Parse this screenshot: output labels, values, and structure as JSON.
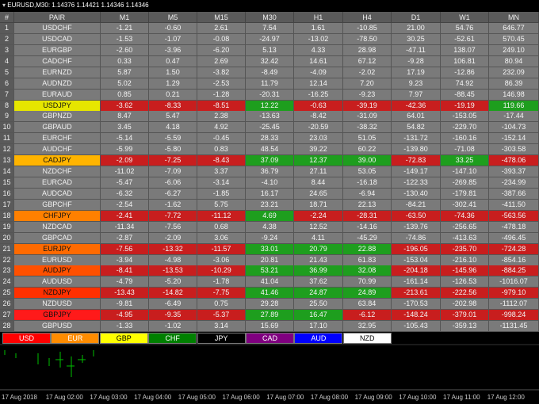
{
  "title": "EURUSD,M30: 1.14376 1.14421 1.14346 1.14346",
  "table": {
    "columns": [
      "#",
      "PAIR",
      "M1",
      "M5",
      "M15",
      "M30",
      "H1",
      "H4",
      "D1",
      "W1",
      "MN"
    ],
    "rows": [
      {
        "num": "1",
        "pair": "USDCHF",
        "values": [
          "-1.21",
          "-0.60",
          "2.61",
          "7.54",
          "1.61",
          "-10.85",
          "21.00",
          "54.76",
          "646.77"
        ]
      },
      {
        "num": "2",
        "pair": "USDCAD",
        "values": [
          "-1.53",
          "-1.07",
          "-0.08",
          "-24.97",
          "-13.02",
          "-78.50",
          "30.25",
          "-52.61",
          "570.45"
        ]
      },
      {
        "num": "3",
        "pair": "EURGBP",
        "values": [
          "-2.60",
          "-3.96",
          "-6.20",
          "5.13",
          "4.33",
          "28.98",
          "-47.11",
          "138.07",
          "249.10"
        ]
      },
      {
        "num": "4",
        "pair": "CADCHF",
        "values": [
          "0.33",
          "0.47",
          "2.69",
          "32.42",
          "14.61",
          "67.12",
          "-9.28",
          "106.81",
          "80.94"
        ]
      },
      {
        "num": "5",
        "pair": "EURNZD",
        "values": [
          "5.87",
          "1.50",
          "-3.82",
          "-8.49",
          "-4.09",
          "-2.02",
          "17.19",
          "-12.86",
          "232.09"
        ]
      },
      {
        "num": "6",
        "pair": "AUDNZD",
        "values": [
          "5.02",
          "1.29",
          "-2.53",
          "11.79",
          "12.14",
          "7.20",
          "9.23",
          "74.92",
          "86.39"
        ]
      },
      {
        "num": "7",
        "pair": "EURAUD",
        "values": [
          "0.85",
          "0.21",
          "-1.28",
          "-20.31",
          "-16.25",
          "-9.23",
          "7.97",
          "-88.45",
          "146.98"
        ]
      },
      {
        "num": "8",
        "pair": "USDJPY",
        "pair_color": "#e6e600",
        "values": [
          "-3.62",
          "-8.33",
          "-8.51",
          "12.22",
          "-0.63",
          "-39.19",
          "-42.36",
          "-19.19",
          "119.66"
        ],
        "cell_colors": [
          "#c81e1e",
          "#c81e1e",
          "#c81e1e",
          "#1e9e1e",
          "#c81e1e",
          "#c81e1e",
          "#c81e1e",
          "#c81e1e",
          "#1e9e1e"
        ]
      },
      {
        "num": "9",
        "pair": "GBPNZD",
        "values": [
          "8.47",
          "5.47",
          "2.38",
          "-13.63",
          "-8.42",
          "-31.09",
          "64.01",
          "-153.05",
          "-17.44"
        ]
      },
      {
        "num": "10",
        "pair": "GBPAUD",
        "values": [
          "3.45",
          "4.18",
          "4.92",
          "-25.45",
          "-20.59",
          "-38.32",
          "54.82",
          "-229.70",
          "-104.73"
        ]
      },
      {
        "num": "11",
        "pair": "EURCHF",
        "values": [
          "-5.14",
          "-5.59",
          "-0.45",
          "28.33",
          "23.03",
          "51.05",
          "-131.72",
          "-160.16",
          "-152.14"
        ]
      },
      {
        "num": "12",
        "pair": "AUDCHF",
        "values": [
          "-5.99",
          "-5.80",
          "0.83",
          "48.54",
          "39.22",
          "60.22",
          "-139.80",
          "-71.08",
          "-303.58"
        ]
      },
      {
        "num": "13",
        "pair": "CADJPY",
        "pair_color": "#ffb400",
        "values": [
          "-2.09",
          "-7.25",
          "-8.43",
          "37.09",
          "12.37",
          "39.00",
          "-72.83",
          "33.25",
          "-478.06"
        ],
        "cell_colors": [
          "#c81e1e",
          "#c81e1e",
          "#c81e1e",
          "#1e9e1e",
          "#1e9e1e",
          "#1e9e1e",
          "#c81e1e",
          "#1e9e1e",
          "#c81e1e"
        ]
      },
      {
        "num": "14",
        "pair": "NZDCHF",
        "values": [
          "-11.02",
          "-7.09",
          "3.37",
          "36.79",
          "27.11",
          "53.05",
          "-149.17",
          "-147.10",
          "-393.37"
        ]
      },
      {
        "num": "15",
        "pair": "EURCAD",
        "values": [
          "-5.47",
          "-6.06",
          "-3.14",
          "-4.10",
          "8.44",
          "-16.18",
          "-122.33",
          "-269.85",
          "-234.99"
        ]
      },
      {
        "num": "16",
        "pair": "AUDCAD",
        "values": [
          "-6.32",
          "-6.27",
          "-1.85",
          "16.17",
          "24.65",
          "-6.94",
          "-130.40",
          "-179.81",
          "-387.66"
        ]
      },
      {
        "num": "17",
        "pair": "GBPCHF",
        "values": [
          "-2.54",
          "-1.62",
          "5.75",
          "23.21",
          "18.71",
          "22.13",
          "-84.21",
          "-302.41",
          "-411.50"
        ]
      },
      {
        "num": "18",
        "pair": "CHFJPY",
        "pair_color": "#ff8000",
        "values": [
          "-2.41",
          "-7.72",
          "-11.12",
          "4.69",
          "-2.24",
          "-28.31",
          "-63.50",
          "-74.36",
          "-563.56"
        ],
        "cell_colors": [
          "#c81e1e",
          "#c81e1e",
          "#c81e1e",
          "#1e9e1e",
          "#c81e1e",
          "#c81e1e",
          "#c81e1e",
          "#c81e1e",
          "#c81e1e"
        ]
      },
      {
        "num": "19",
        "pair": "NZDCAD",
        "values": [
          "-11.34",
          "-7.56",
          "0.68",
          "4.38",
          "12.52",
          "-14.16",
          "-139.76",
          "-256.65",
          "-478.18"
        ]
      },
      {
        "num": "20",
        "pair": "GBPCAD",
        "values": [
          "-2.87",
          "-2.09",
          "3.06",
          "-9.24",
          "4.11",
          "-45.29",
          "-74.86",
          "-413.63",
          "-496.45"
        ]
      },
      {
        "num": "21",
        "pair": "EURJPY",
        "pair_color": "#ff6a00",
        "values": [
          "-7.56",
          "-13.32",
          "-11.57",
          "33.01",
          "20.79",
          "22.88",
          "-196.05",
          "-235.70",
          "-724.28"
        ],
        "cell_colors": [
          "#c81e1e",
          "#c81e1e",
          "#c81e1e",
          "#1e9e1e",
          "#1e9e1e",
          "#1e9e1e",
          "#c81e1e",
          "#c81e1e",
          "#c81e1e"
        ]
      },
      {
        "num": "22",
        "pair": "EURUSD",
        "values": [
          "-3.94",
          "-4.98",
          "-3.06",
          "20.81",
          "21.43",
          "61.83",
          "-153.04",
          "-216.10",
          "-854.16"
        ]
      },
      {
        "num": "23",
        "pair": "AUDJPY",
        "pair_color": "#ff5000",
        "values": [
          "-8.41",
          "-13.53",
          "-10.29",
          "53.21",
          "36.99",
          "32.08",
          "-204.18",
          "-145.96",
          "-884.25"
        ],
        "cell_colors": [
          "#c81e1e",
          "#c81e1e",
          "#c81e1e",
          "#1e9e1e",
          "#1e9e1e",
          "#1e9e1e",
          "#c81e1e",
          "#c81e1e",
          "#c81e1e"
        ]
      },
      {
        "num": "24",
        "pair": "AUDUSD",
        "values": [
          "-4.79",
          "-5.20",
          "-1.78",
          "41.04",
          "37.62",
          "70.99",
          "-161.14",
          "-126.53",
          "-1016.07"
        ]
      },
      {
        "num": "25",
        "pair": "NZDJPY",
        "pair_color": "#ff3000",
        "values": [
          "-13.43",
          "-14.82",
          "-7.75",
          "41.46",
          "24.87",
          "24.89",
          "-213.61",
          "-222.56",
          "-979.10"
        ],
        "cell_colors": [
          "#c81e1e",
          "#c81e1e",
          "#c81e1e",
          "#1e9e1e",
          "#1e9e1e",
          "#1e9e1e",
          "#c81e1e",
          "#c81e1e",
          "#c81e1e"
        ]
      },
      {
        "num": "26",
        "pair": "NZDUSD",
        "values": [
          "-9.81",
          "-6.49",
          "0.75",
          "29.28",
          "25.50",
          "63.84",
          "-170.53",
          "-202.98",
          "-1112.07"
        ]
      },
      {
        "num": "27",
        "pair": "GBPJPY",
        "pair_color": "#ff1a1a",
        "values": [
          "-4.95",
          "-9.35",
          "-5.37",
          "27.89",
          "16.47",
          "-6.12",
          "-148.24",
          "-379.01",
          "-998.24"
        ],
        "cell_colors": [
          "#c81e1e",
          "#c81e1e",
          "#c81e1e",
          "#1e9e1e",
          "#1e9e1e",
          "#c81e1e",
          "#c81e1e",
          "#c81e1e",
          "#c81e1e"
        ]
      },
      {
        "num": "28",
        "pair": "GBPUSD",
        "values": [
          "-1.33",
          "-1.02",
          "3.14",
          "15.69",
          "17.10",
          "32.95",
          "-105.43",
          "-359.13",
          "-1131.45"
        ]
      }
    ]
  },
  "buttons": [
    {
      "label": "USD",
      "color": "#ff0000",
      "text_color": "#ffffff"
    },
    {
      "label": "EUR",
      "color": "#ff8c00",
      "text_color": "#ffffff"
    },
    {
      "label": "GBP",
      "color": "#ffff00",
      "text_color": "#000000"
    },
    {
      "label": "CHF",
      "color": "#008000",
      "text_color": "#ffffff"
    },
    {
      "label": "JPY",
      "color": "#000000",
      "text_color": "#ffffff"
    },
    {
      "label": "CAD",
      "color": "#800080",
      "text_color": "#ffffff"
    },
    {
      "label": "AUD",
      "color": "#0000ff",
      "text_color": "#ffffff"
    },
    {
      "label": "NZD",
      "color": "#ffffff",
      "text_color": "#000000"
    }
  ],
  "time_axis": [
    "17 Aug 2018",
    "17 Aug 02:00",
    "17 Aug 03:00",
    "17 Aug 04:00",
    "17 Aug 05:00",
    "17 Aug 06:00",
    "17 Aug 07:00",
    "17 Aug 08:00",
    "17 Aug 09:00",
    "17 Aug 10:00",
    "17 Aug 11:00",
    "17 Aug 12:00"
  ]
}
